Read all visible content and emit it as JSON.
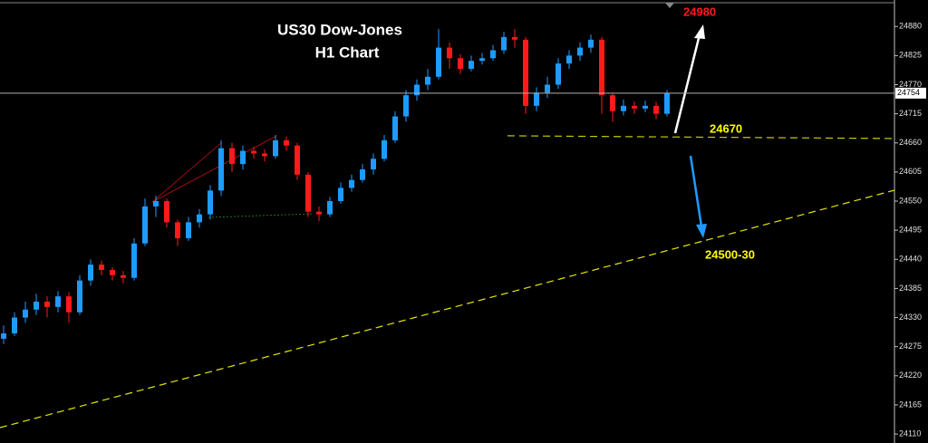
{
  "chart_data": {
    "type": "candlestick",
    "title": "US30 Dow-Jones",
    "subtitle": "H1 Chart",
    "up_color": "#1e9bff",
    "down_color": "#ff1a1a",
    "open": [
      24290,
      24300,
      24330,
      24345,
      24360,
      24350,
      24370,
      24340,
      24400,
      24430,
      24420,
      24410,
      24405,
      24470,
      24540,
      24550,
      24510,
      24480,
      24510,
      24525,
      24570,
      24650,
      24620,
      24645,
      24640,
      24635,
      24665,
      24655,
      24600,
      24530,
      24525,
      24550,
      24575,
      24590,
      24610,
      24630,
      24665,
      24710,
      24750,
      24770,
      24785,
      24840,
      24820,
      24800,
      24815,
      24820,
      24835,
      24860,
      24855,
      24730,
      24755,
      24770,
      24810,
      24825,
      24840,
      24855,
      24750,
      24720,
      24730,
      24725,
      24730,
      24715
    ],
    "high": [
      24315,
      24340,
      24360,
      24375,
      24370,
      24380,
      24378,
      24410,
      24440,
      24438,
      24425,
      24418,
      24480,
      24555,
      24560,
      24555,
      24515,
      24520,
      24535,
      24580,
      24665,
      24660,
      24655,
      24652,
      24648,
      24675,
      24672,
      24660,
      24605,
      24540,
      24558,
      24585,
      24600,
      24620,
      24640,
      24675,
      24720,
      24760,
      24780,
      24800,
      24875,
      24850,
      24828,
      24825,
      24830,
      24845,
      24870,
      24875,
      24860,
      24765,
      24785,
      24820,
      24835,
      24850,
      24865,
      24860,
      24755,
      24742,
      24738,
      24740,
      24738,
      24760
    ],
    "low": [
      24280,
      24295,
      24320,
      24335,
      24330,
      24340,
      24320,
      24335,
      24390,
      24410,
      24400,
      24395,
      24400,
      24465,
      24520,
      24500,
      24465,
      24475,
      24500,
      24515,
      24560,
      24605,
      24610,
      24630,
      24625,
      24630,
      24645,
      24590,
      24520,
      24512,
      24520,
      24545,
      24568,
      24585,
      24600,
      24625,
      24660,
      24700,
      24740,
      24760,
      24780,
      24800,
      24790,
      24795,
      24808,
      24815,
      24828,
      24840,
      24715,
      24720,
      24745,
      24762,
      24800,
      24815,
      24830,
      24715,
      24700,
      24712,
      24715,
      24718,
      24705,
      24710
    ],
    "close": [
      24300,
      24330,
      24345,
      24360,
      24350,
      24370,
      24340,
      24400,
      24430,
      24420,
      24410,
      24405,
      24470,
      24540,
      24550,
      24510,
      24480,
      24510,
      24525,
      24570,
      24650,
      24620,
      24645,
      24640,
      24635,
      24665,
      24655,
      24600,
      24530,
      24525,
      24550,
      24575,
      24590,
      24610,
      24630,
      24665,
      24710,
      24750,
      24770,
      24785,
      24840,
      24820,
      24800,
      24815,
      24820,
      24835,
      24860,
      24855,
      24730,
      24755,
      24770,
      24810,
      24825,
      24840,
      24855,
      24750,
      24720,
      24730,
      24725,
      24730,
      24715,
      24754
    ],
    "last_price": 24754,
    "ylim": [
      24093,
      24930
    ],
    "yticks": [
      24110,
      24165,
      24220,
      24275,
      24330,
      24385,
      24440,
      24495,
      24550,
      24605,
      24660,
      24715,
      24770,
      24825,
      24880
    ],
    "annotations": [
      {
        "value": 24980,
        "color": "#ff1a1a"
      },
      {
        "value": 24670,
        "color": "#ffff00"
      },
      {
        "text": "24500-30",
        "color": "#ffff00"
      }
    ]
  }
}
